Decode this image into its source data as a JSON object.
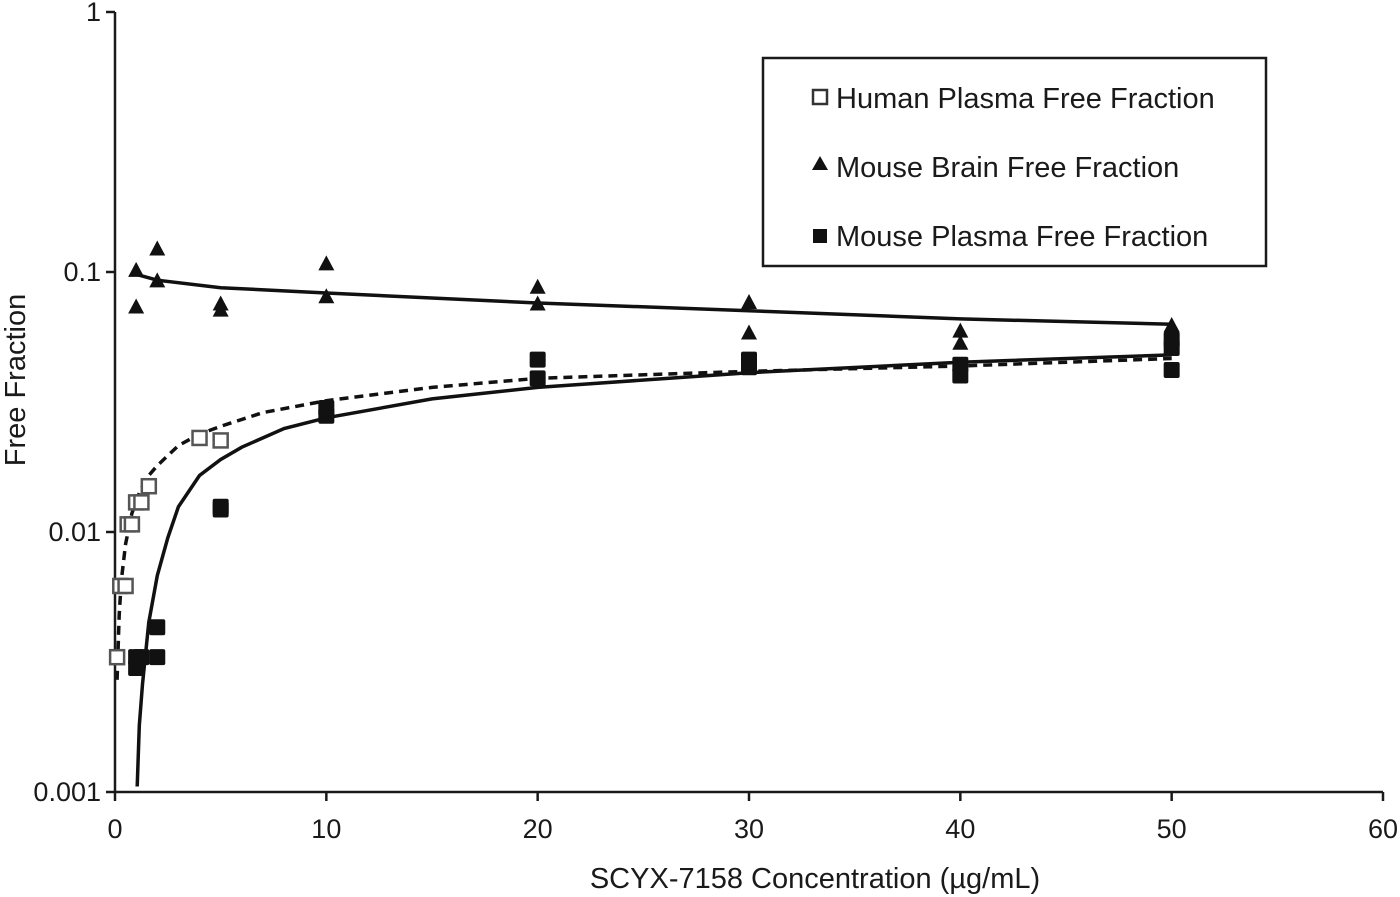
{
  "chart_data": {
    "type": "scatter",
    "title": "",
    "xlabel": "SCYX-7158 Concentration (µg/mL)",
    "ylabel": "Free Fraction",
    "xlim": [
      0,
      60
    ],
    "ylim": [
      0.001,
      1
    ],
    "yscale": "log",
    "x_ticks": [
      "0",
      "10",
      "20",
      "30",
      "40",
      "50",
      "60"
    ],
    "y_ticks": [
      "0.001",
      "0.01",
      "0.1",
      "1"
    ],
    "legend_position": "top-right",
    "series": [
      {
        "name": "Human Plasma Free Fraction",
        "marker": "open-square",
        "points": [
          [
            0.1,
            0.0033
          ],
          [
            0.25,
            0.0062
          ],
          [
            0.5,
            0.0062
          ],
          [
            0.6,
            0.0107
          ],
          [
            0.8,
            0.0107
          ],
          [
            1.0,
            0.013
          ],
          [
            1.25,
            0.013
          ],
          [
            1.6,
            0.015
          ],
          [
            4.0,
            0.023
          ],
          [
            5.0,
            0.0225
          ]
        ],
        "fit": {
          "style": "dashed",
          "points": [
            [
              0.1,
              0.0027
            ],
            [
              0.2,
              0.0048
            ],
            [
              0.3,
              0.0065
            ],
            [
              0.5,
              0.009
            ],
            [
              0.8,
              0.0118
            ],
            [
              1.2,
              0.0145
            ],
            [
              1.6,
              0.0165
            ],
            [
              2.0,
              0.018
            ],
            [
              3.0,
              0.0215
            ],
            [
              4.0,
              0.0238
            ],
            [
              5.0,
              0.0255
            ],
            [
              7.0,
              0.0288
            ],
            [
              10.0,
              0.032
            ],
            [
              15.0,
              0.036
            ],
            [
              20.0,
              0.039
            ],
            [
              30.0,
              0.0415
            ],
            [
              40.0,
              0.0435
            ],
            [
              50.0,
              0.0465
            ]
          ]
        }
      },
      {
        "name": "Mouse Brain Free Fraction",
        "marker": "filled-triangle",
        "points": [
          [
            1,
            0.101
          ],
          [
            1,
            0.073
          ],
          [
            2,
            0.122
          ],
          [
            2,
            0.092
          ],
          [
            5,
            0.075
          ],
          [
            5,
            0.071
          ],
          [
            10,
            0.107
          ],
          [
            10,
            0.08
          ],
          [
            20,
            0.087
          ],
          [
            20,
            0.075
          ],
          [
            30,
            0.076
          ],
          [
            30,
            0.058
          ],
          [
            40,
            0.059
          ],
          [
            40,
            0.053
          ],
          [
            50,
            0.062
          ],
          [
            50,
            0.058
          ]
        ],
        "fit": {
          "style": "solid",
          "points": [
            [
              1,
              0.098
            ],
            [
              2,
              0.093
            ],
            [
              5,
              0.087
            ],
            [
              10,
              0.083
            ],
            [
              20,
              0.076
            ],
            [
              30,
              0.071
            ],
            [
              40,
              0.066
            ],
            [
              50,
              0.063
            ]
          ]
        }
      },
      {
        "name": "Mouse Plasma Free Fraction",
        "marker": "filled-square",
        "points": [
          [
            1,
            0.0033
          ],
          [
            1,
            0.003
          ],
          [
            1.25,
            0.0033
          ],
          [
            2,
            0.0043
          ],
          [
            2,
            0.0033
          ],
          [
            5,
            0.0125
          ],
          [
            5,
            0.0122
          ],
          [
            10,
            0.03
          ],
          [
            10,
            0.028
          ],
          [
            20,
            0.046
          ],
          [
            20,
            0.039
          ],
          [
            30,
            0.046
          ],
          [
            30,
            0.043
          ],
          [
            40,
            0.044
          ],
          [
            40,
            0.04
          ],
          [
            50,
            0.055
          ],
          [
            50,
            0.051
          ],
          [
            50,
            0.042
          ]
        ],
        "fit": {
          "style": "solid",
          "points": [
            [
              1.05,
              0.00105
            ],
            [
              1.15,
              0.0018
            ],
            [
              1.3,
              0.0026
            ],
            [
              1.6,
              0.0045
            ],
            [
              2.0,
              0.0068
            ],
            [
              2.5,
              0.0095
            ],
            [
              3.0,
              0.0125
            ],
            [
              4.0,
              0.0165
            ],
            [
              5.0,
              0.019
            ],
            [
              6.0,
              0.0212
            ],
            [
              8.0,
              0.025
            ],
            [
              10.0,
              0.0275
            ],
            [
              15.0,
              0.0325
            ],
            [
              20.0,
              0.036
            ],
            [
              30.0,
              0.041
            ],
            [
              40.0,
              0.045
            ],
            [
              50.0,
              0.048
            ]
          ]
        }
      }
    ]
  }
}
